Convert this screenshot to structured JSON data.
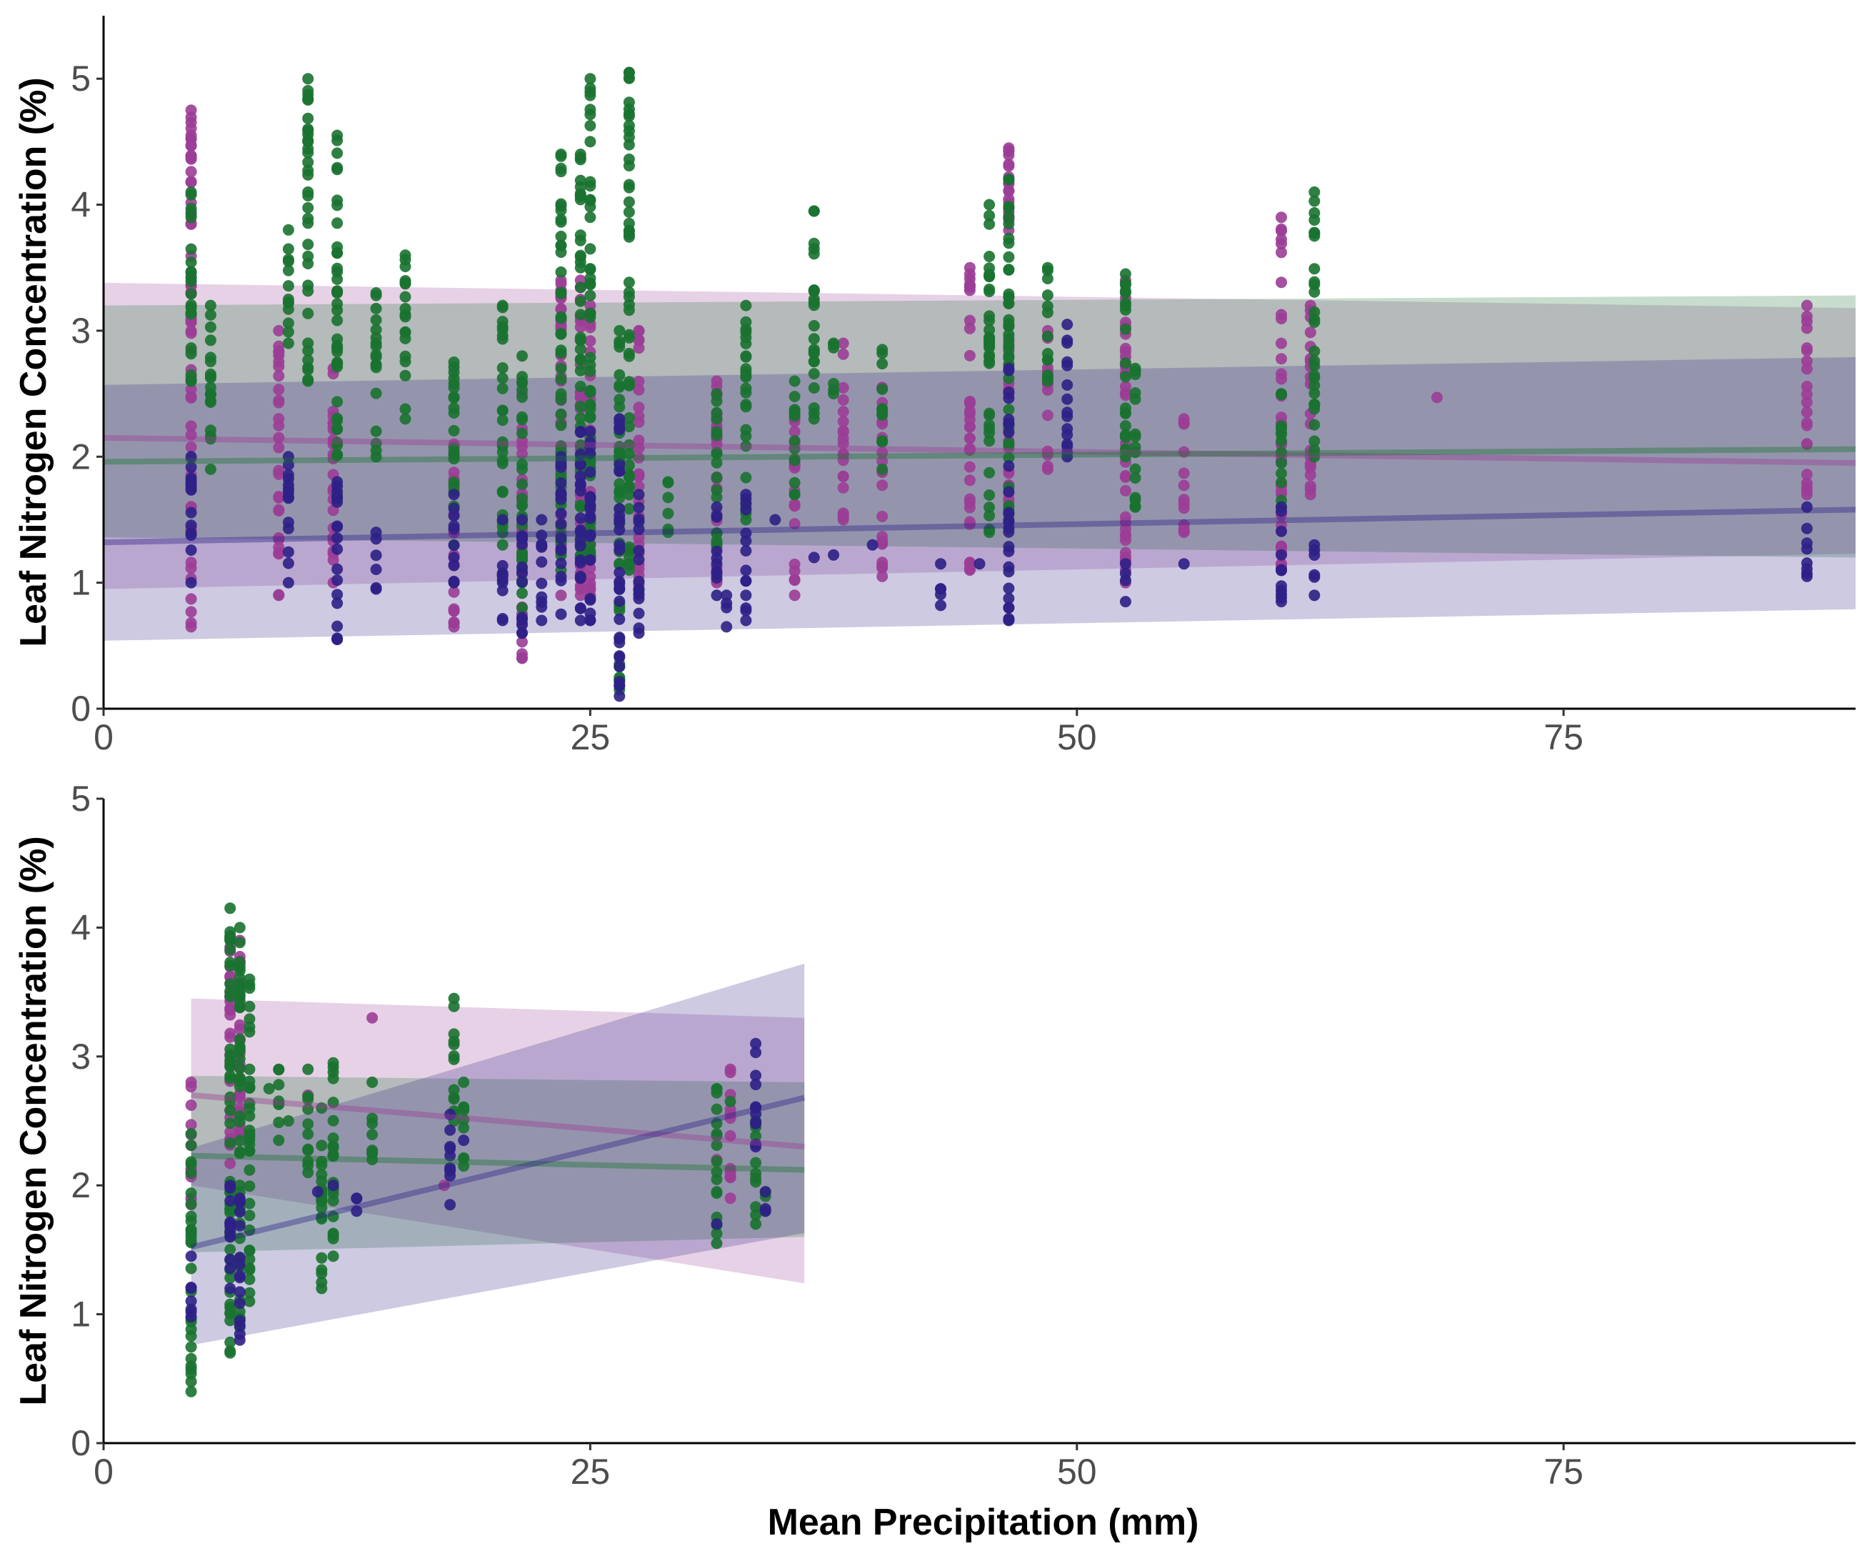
{
  "chart_data": [
    {
      "type": "scatter",
      "panel": "top",
      "xlabel": "",
      "ylabel": "Leaf Nitrogen Concentration (%)",
      "xlim": [
        0,
        90
      ],
      "ylim": [
        0,
        5.5
      ],
      "x_ticks": [
        "0",
        "25",
        "50",
        "75"
      ],
      "x_tick_values": [
        0,
        25,
        50,
        75
      ],
      "y_ticks": [
        "0",
        "1",
        "2",
        "3",
        "4",
        "5"
      ],
      "y_tick_values": [
        0,
        1,
        2,
        3,
        4,
        5
      ],
      "grid": false,
      "legend": "none",
      "series": [
        {
          "color": "#9b3d96",
          "x_values": [
            4.5,
            9,
            11.8,
            18,
            21.5,
            23.5,
            24.5,
            25,
            27.5,
            31.5,
            35.5,
            38,
            40,
            44.5,
            46.5,
            48.5,
            52.5,
            55.5,
            60.5,
            62,
            68.5,
            87.5
          ],
          "point_ranges": [
            [
              0.65,
              4.75
            ],
            [
              0.9,
              3.0
            ],
            [
              1.0,
              2.7
            ],
            [
              0.65,
              2.1
            ],
            [
              0.4,
              2.5
            ],
            [
              0.9,
              3.4
            ],
            [
              0.9,
              3.4
            ],
            [
              0.9,
              3.2
            ],
            [
              0.9,
              3.0
            ],
            [
              1.0,
              2.6
            ],
            [
              0.9,
              2.3
            ],
            [
              1.5,
              2.9
            ],
            [
              1.05,
              2.55
            ],
            [
              1.1,
              3.5
            ],
            [
              1.5,
              4.45
            ],
            [
              1.9,
              3.0
            ],
            [
              1.0,
              3.4
            ],
            [
              1.4,
              2.3
            ],
            [
              1.1,
              3.9
            ],
            [
              1.7,
              3.2
            ],
            [
              2.47,
              2.47
            ],
            [
              1.7,
              3.2
            ]
          ],
          "trend": {
            "x": [
              0,
              90
            ],
            "y": [
              2.15,
              1.95
            ]
          },
          "band": {
            "lower": [
              0.95,
              1.23
            ],
            "upper": [
              3.38,
              3.18
            ]
          }
        },
        {
          "color": "#1a7230",
          "x_values": [
            4.5,
            5.5,
            9.5,
            10.5,
            12,
            14,
            15.5,
            18,
            20.5,
            21.5,
            23.5,
            24.5,
            25,
            26.5,
            27,
            29,
            31.5,
            33,
            35.5,
            36.5,
            37.5,
            40,
            45.5,
            46.5,
            48.5,
            52.5,
            53,
            60.5,
            62.2
          ],
          "point_ranges": [
            [
              2.6,
              4.1
            ],
            [
              1.9,
              3.2
            ],
            [
              2.9,
              3.8
            ],
            [
              2.6,
              5.0
            ],
            [
              1.7,
              4.55
            ],
            [
              2.0,
              3.3
            ],
            [
              2.3,
              3.6
            ],
            [
              1.3,
              2.75
            ],
            [
              1.3,
              3.2
            ],
            [
              0.8,
              2.8
            ],
            [
              1.1,
              4.4
            ],
            [
              1.2,
              4.4
            ],
            [
              1.2,
              5.0
            ],
            [
              0.15,
              3.0
            ],
            [
              1.1,
              5.05
            ],
            [
              1.4,
              1.8
            ],
            [
              1.3,
              2.5
            ],
            [
              1.5,
              3.2
            ],
            [
              1.7,
              2.6
            ],
            [
              2.3,
              3.95
            ],
            [
              2.5,
              2.9
            ],
            [
              1.9,
              2.85
            ],
            [
              1.4,
              4.0
            ],
            [
              1.5,
              4.2
            ],
            [
              2.6,
              3.5
            ],
            [
              2.0,
              3.45
            ],
            [
              1.6,
              2.7
            ],
            [
              1.6,
              2.5
            ],
            [
              2.0,
              4.1
            ]
          ],
          "trend": {
            "x": [
              0,
              90
            ],
            "y": [
              1.96,
              2.06
            ]
          },
          "band": {
            "lower": [
              1.36,
              1.2
            ],
            "upper": [
              3.2,
              3.28
            ]
          }
        },
        {
          "color": "#2e2086",
          "x_values": [
            4.5,
            9.5,
            12,
            14,
            18,
            20.5,
            21.5,
            22.5,
            23.5,
            24.5,
            25,
            26.5,
            27.5,
            31.5,
            32,
            33,
            34.5,
            36.5,
            37.5,
            39.5,
            43,
            45,
            46.5,
            49.5,
            52.5,
            55.5,
            60.5,
            62.2,
            87.5
          ],
          "point_ranges": [
            [
              1.0,
              2.0
            ],
            [
              1.0,
              2.0
            ],
            [
              0.55,
              1.8
            ],
            [
              0.95,
              1.4
            ],
            [
              1.0,
              1.7
            ],
            [
              0.7,
              1.5
            ],
            [
              0.6,
              1.5
            ],
            [
              0.7,
              1.5
            ],
            [
              0.75,
              2.0
            ],
            [
              0.7,
              2.2
            ],
            [
              0.7,
              2.2
            ],
            [
              0.1,
              2.3
            ],
            [
              0.6,
              1.7
            ],
            [
              0.9,
              1.6
            ],
            [
              0.65,
              0.9
            ],
            [
              0.7,
              1.7
            ],
            [
              1.5,
              1.5
            ],
            [
              1.2,
              1.2
            ],
            [
              1.22,
              1.22
            ],
            [
              1.3,
              1.3
            ],
            [
              0.82,
              1.15
            ],
            [
              1.15,
              1.15
            ],
            [
              0.7,
              2.7
            ],
            [
              2.0,
              3.05
            ],
            [
              0.85,
              1.15
            ],
            [
              1.15,
              1.15
            ],
            [
              0.85,
              1.6
            ],
            [
              0.9,
              1.3
            ],
            [
              1.05,
              1.6
            ]
          ],
          "trend": {
            "x": [
              0,
              90
            ],
            "y": [
              1.32,
              1.58
            ]
          },
          "band": {
            "lower": [
              0.54,
              0.79
            ],
            "upper": [
              2.57,
              2.79
            ]
          }
        }
      ]
    },
    {
      "type": "scatter",
      "panel": "bottom",
      "xlabel": "Mean Precipitation (mm)",
      "ylabel": "Leaf Nitrogen Concentration (%)",
      "xlim": [
        0,
        90
      ],
      "ylim": [
        0,
        5
      ],
      "x_ticks": [
        "0",
        "25",
        "50",
        "75"
      ],
      "x_tick_values": [
        0,
        25,
        50,
        75
      ],
      "y_ticks": [
        "0",
        "1",
        "2",
        "3",
        "4",
        "5"
      ],
      "y_tick_values": [
        0,
        1,
        2,
        3,
        4,
        5
      ],
      "grid": false,
      "legend": "none",
      "series": [
        {
          "color": "#9b3d96",
          "x_values": [
            4.5,
            6.5,
            7,
            10.5,
            11.2,
            13.8,
            17.5,
            31.5,
            32.2
          ],
          "point_ranges": [
            [
              1.85,
              2.8
            ],
            [
              2.0,
              3.85
            ],
            [
              1.8,
              3.9
            ],
            [
              2.7,
              2.7
            ],
            [
              1.95,
              1.95
            ],
            [
              3.3,
              3.3
            ],
            [
              2.0,
              2.0
            ],
            [
              2.2,
              2.2
            ],
            [
              1.9,
              2.9
            ]
          ],
          "trend": {
            "x": [
              4.5,
              36
            ],
            "y": [
              2.7,
              2.3
            ]
          },
          "band": {
            "lower": [
              2.0,
              1.24
            ],
            "upper": [
              3.45,
              3.3
            ]
          }
        },
        {
          "color": "#1a7230",
          "x_values": [
            4.5,
            6.5,
            7,
            7.5,
            8.5,
            9,
            9.5,
            10.5,
            11.2,
            11.8,
            13.8,
            18,
            18.5,
            31.5,
            32.2,
            33.5,
            34
          ],
          "point_ranges": [
            [
              0.4,
              2.4
            ],
            [
              0.7,
              4.15
            ],
            [
              0.9,
              4.0
            ],
            [
              1.1,
              3.6
            ],
            [
              2.75,
              2.75
            ],
            [
              2.35,
              2.9
            ],
            [
              2.5,
              2.5
            ],
            [
              2.1,
              2.9
            ],
            [
              1.2,
              2.6
            ],
            [
              1.45,
              2.95
            ],
            [
              2.2,
              2.8
            ],
            [
              2.5,
              3.45
            ],
            [
              2.15,
              2.8
            ],
            [
              1.55,
              2.75
            ],
            [
              2.65,
              2.65
            ],
            [
              1.7,
              2.5
            ],
            [
              1.8,
              1.95
            ]
          ],
          "trend": {
            "x": [
              4.5,
              36
            ],
            "y": [
              2.23,
              2.12
            ]
          },
          "band": {
            "lower": [
              1.48,
              1.6
            ],
            "upper": [
              2.85,
              2.8
            ]
          }
        },
        {
          "color": "#2e2086",
          "x_values": [
            4.5,
            6.5,
            7,
            11,
            11.8,
            13,
            17.8,
            18.5,
            31.5,
            33.5,
            34
          ],
          "point_ranges": [
            [
              0.98,
              1.45
            ],
            [
              1.2,
              2.0
            ],
            [
              0.8,
              1.9
            ],
            [
              1.95,
              1.95
            ],
            [
              2.0,
              2.0
            ],
            [
              1.8,
              1.9
            ],
            [
              1.85,
              2.55
            ],
            [
              2.35,
              2.35
            ],
            [
              1.7,
              1.7
            ],
            [
              2.3,
              3.1
            ],
            [
              1.8,
              1.95
            ]
          ],
          "trend": {
            "x": [
              4.5,
              36
            ],
            "y": [
              1.52,
              2.68
            ]
          },
          "band": {
            "lower": [
              0.76,
              1.63
            ],
            "upper": [
              2.29,
              3.72
            ]
          }
        }
      ]
    }
  ]
}
